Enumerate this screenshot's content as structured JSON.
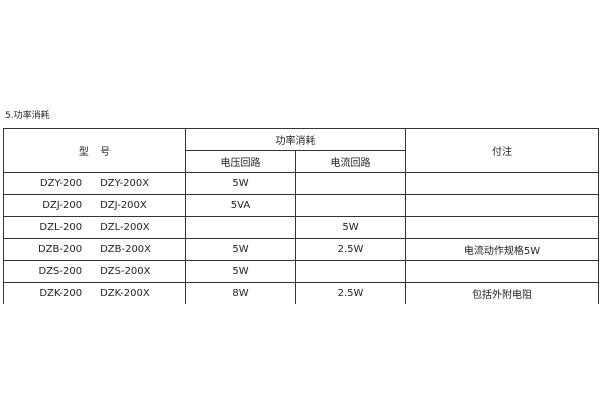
{
  "section_title": "5.功率消耗",
  "table": {
    "header_model": "型 号",
    "header_power": "功率消耗",
    "header_voltage": "电压回路",
    "header_current": "电流回路",
    "header_note": "付注",
    "rows": [
      {
        "model_a": "DZY-200",
        "model_b": "DZY-200X",
        "voltage": "5W",
        "current": "",
        "note": ""
      },
      {
        "model_a": "DZJ-200",
        "model_b": "DZJ-200X",
        "voltage": "5VA",
        "current": "",
        "note": ""
      },
      {
        "model_a": "DZL-200",
        "model_b": "DZL-200X",
        "voltage": "",
        "current": "5W",
        "note": ""
      },
      {
        "model_a": "DZB-200",
        "model_b": "DZB-200X",
        "voltage": "5W",
        "current": "2.5W",
        "note": "电流动作规格5W"
      },
      {
        "model_a": "DZS-200",
        "model_b": "DZS-200X",
        "voltage": "5W",
        "current": "",
        "note": ""
      },
      {
        "model_a": "DZK-200",
        "model_b": "DZK-200X",
        "voltage": "8W",
        "current": "2.5W",
        "note": "包括外附电阻"
      }
    ]
  }
}
